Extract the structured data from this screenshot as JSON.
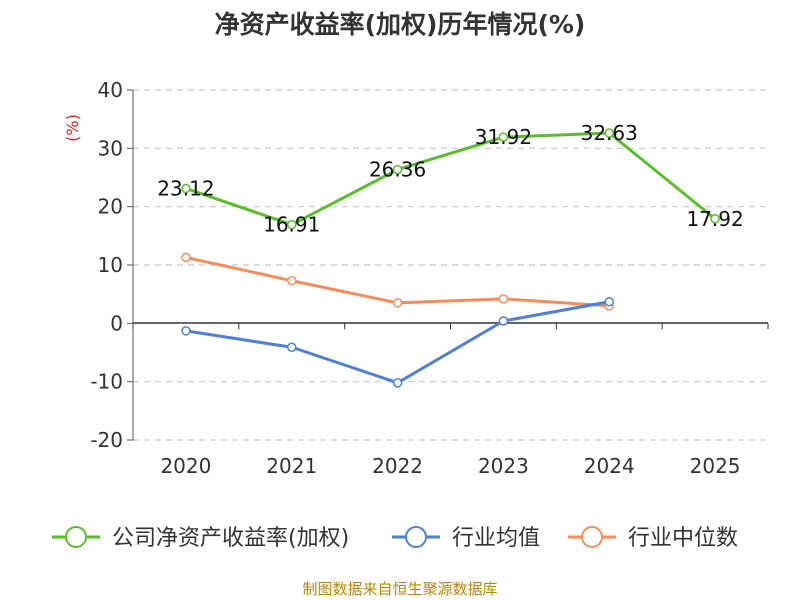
{
  "chart_data": {
    "type": "line",
    "title": "净资产收益率(加权)历年情况(%)",
    "ylabel": "(%)",
    "xlabel": "",
    "categories": [
      "2020",
      "2021",
      "2022",
      "2023",
      "2024",
      "2025"
    ],
    "ylim": [
      -20,
      40
    ],
    "yticks": [
      -20,
      -10,
      0,
      10,
      20,
      30,
      40
    ],
    "ytick_labels": [
      "-20",
      "-10",
      "0",
      "10",
      "20",
      "30",
      "40"
    ],
    "grid": true,
    "legend_position": "bottom",
    "series": [
      {
        "name": "公司净资产收益率(加权)",
        "color": "#5bbd2b",
        "values": [
          23.12,
          16.91,
          26.36,
          31.92,
          32.63,
          17.92
        ],
        "labels": [
          "23.12",
          "16.91",
          "26.36",
          "31.92",
          "32.63",
          "17.92"
        ]
      },
      {
        "name": "行业均值",
        "color": "#4f7fd9",
        "values": [
          -1.3,
          -4.1,
          -10.2,
          0.4,
          3.7,
          null
        ]
      },
      {
        "name": "行业中位数",
        "color": "#f58d5a",
        "values": [
          11.3,
          7.3,
          3.5,
          4.2,
          3.0,
          null
        ]
      }
    ],
    "source": "制图数据来自恒生聚源数据库"
  }
}
